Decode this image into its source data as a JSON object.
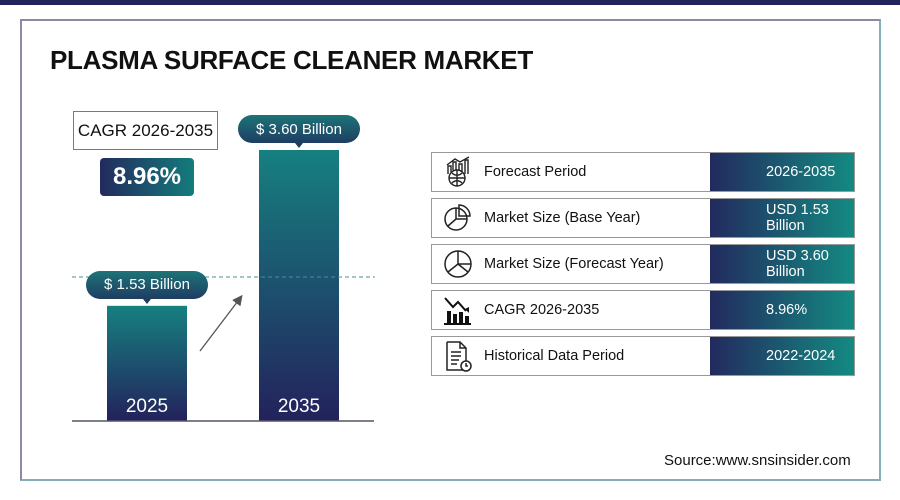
{
  "title": "PLASMA SURFACE CLEANER MARKET",
  "cagr": {
    "label": "CAGR 2026-2035",
    "value": "8.96%"
  },
  "chart_data": {
    "type": "bar",
    "categories": [
      "2025",
      "2035"
    ],
    "values": [
      1.53,
      3.6
    ],
    "data_labels": [
      "$ 1.53 Billion",
      "$ 3.60 Billion"
    ],
    "ylim": [
      0,
      3.6
    ],
    "grid": false,
    "colors": {
      "bar_top": "#168080",
      "bar_bottom": "#23225c"
    }
  },
  "table": [
    {
      "icon": "forecast-chart-globe-icon",
      "label": "Forecast Period",
      "value": "2026-2035"
    },
    {
      "icon": "pie-chart-icon",
      "label": "Market Size (Base Year)",
      "value": "USD 1.53 Billion"
    },
    {
      "icon": "pie-chart-icon",
      "label": "Market Size (Forecast Year)",
      "value": "USD 3.60 Billion"
    },
    {
      "icon": "bar-chart-decline-icon",
      "label": "CAGR 2026-2035",
      "value": "8.96%"
    },
    {
      "icon": "document-clock-icon",
      "label": "Historical Data Period",
      "value": "2022-2024"
    }
  ],
  "source": "Source:www.snsinsider.com"
}
